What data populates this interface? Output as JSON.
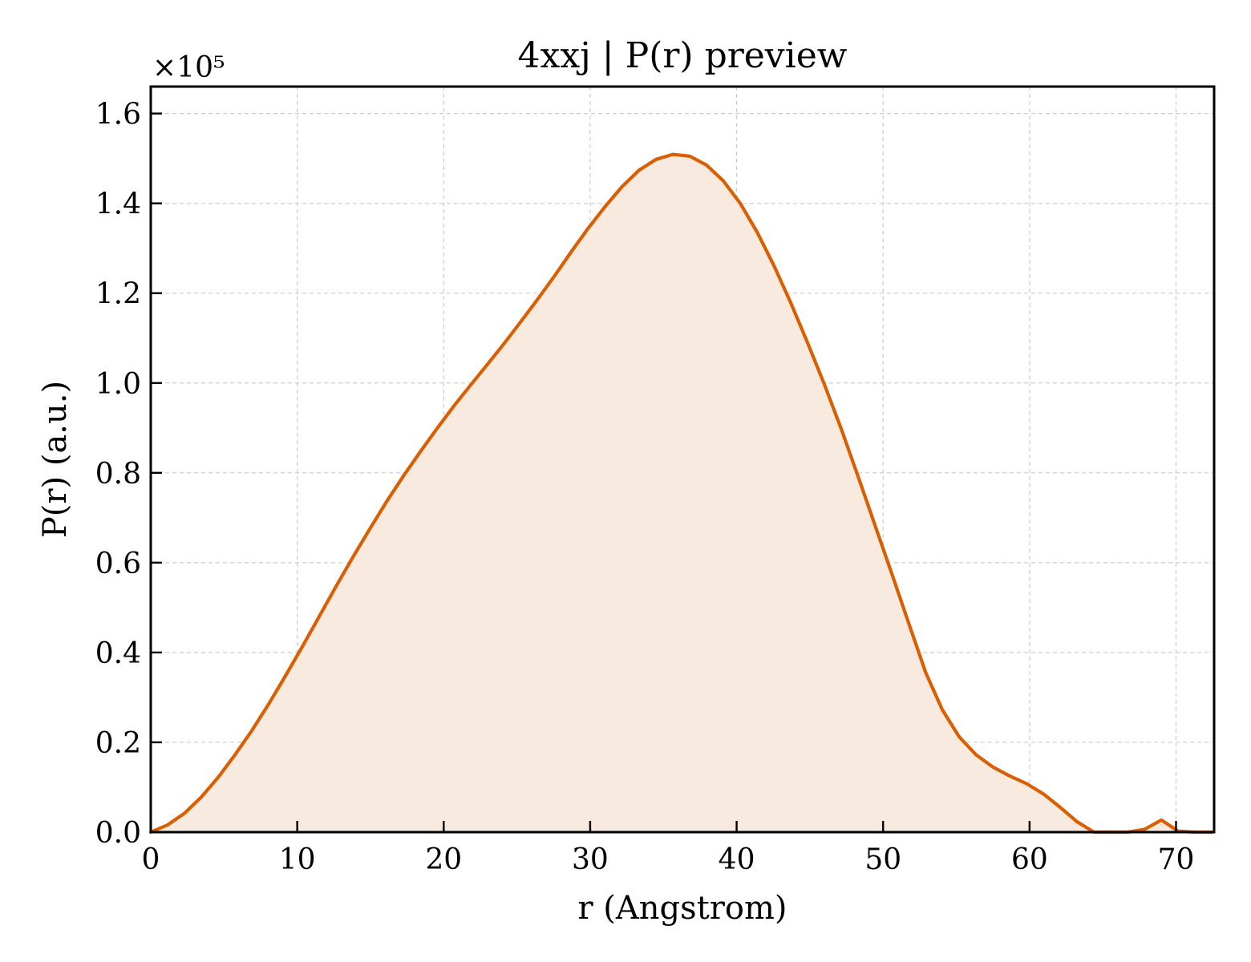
{
  "chart_data": {
    "type": "area",
    "title": "4xxj | P(r) preview",
    "xlabel": "r (Angstrom)",
    "ylabel": "P(r) (a.u.)",
    "y_offset_label": "×10⁵",
    "xlim": [
      0,
      72.6
    ],
    "ylim": [
      0,
      166000
    ],
    "xticks": [
      0,
      10,
      20,
      30,
      40,
      50,
      60,
      70
    ],
    "xtick_labels": [
      "0",
      "10",
      "20",
      "30",
      "40",
      "50",
      "60",
      "70"
    ],
    "yticks": [
      0,
      20000,
      40000,
      60000,
      80000,
      100000,
      120000,
      140000,
      160000
    ],
    "ytick_labels": [
      "0.0",
      "0.2",
      "0.4",
      "0.6",
      "0.8",
      "1.0",
      "1.2",
      "1.4",
      "1.6"
    ],
    "grid": true,
    "line_color": "#d95f02",
    "fill_color": "#f8eadf",
    "series": [
      {
        "x": [
          0,
          1.15,
          2.3,
          3.45,
          4.6,
          5.75,
          6.9,
          8.05,
          9.2,
          10.35,
          11.5,
          12.65,
          13.8,
          14.95,
          16.1,
          17.25,
          18.4,
          19.55,
          20.7,
          21.85,
          23.0,
          24.15,
          25.3,
          26.45,
          27.6,
          28.75,
          29.9,
          31.05,
          32.2,
          33.35,
          34.5,
          35.65,
          36.8,
          37.95,
          39.1,
          40.25,
          41.4,
          42.55,
          43.7,
          44.85,
          46.0,
          47.15,
          48.3,
          49.45,
          50.6,
          51.75,
          52.9,
          54.05,
          55.2,
          56.35,
          57.5,
          58.65,
          59.8,
          60.95,
          62.1,
          63.25,
          64.4,
          65.55,
          66.7,
          67.85,
          69.0,
          70.15,
          71.3,
          72.45
        ],
        "y": [
          0,
          1600,
          4200,
          7800,
          12200,
          17200,
          22600,
          28500,
          34800,
          41300,
          48000,
          54700,
          61200,
          67500,
          73600,
          79300,
          84700,
          89900,
          94900,
          99600,
          104200,
          108900,
          113800,
          118800,
          124000,
          129400,
          134600,
          139400,
          143800,
          147400,
          149800,
          150900,
          150500,
          148500,
          145000,
          140000,
          133600,
          126100,
          117800,
          108900,
          99600,
          89700,
          79100,
          68300,
          57500,
          46500,
          35600,
          27200,
          21200,
          17200,
          14500,
          12500,
          10800,
          8500,
          5500,
          2300,
          0,
          -300,
          0,
          600,
          2700,
          200,
          -200,
          0
        ]
      }
    ]
  }
}
